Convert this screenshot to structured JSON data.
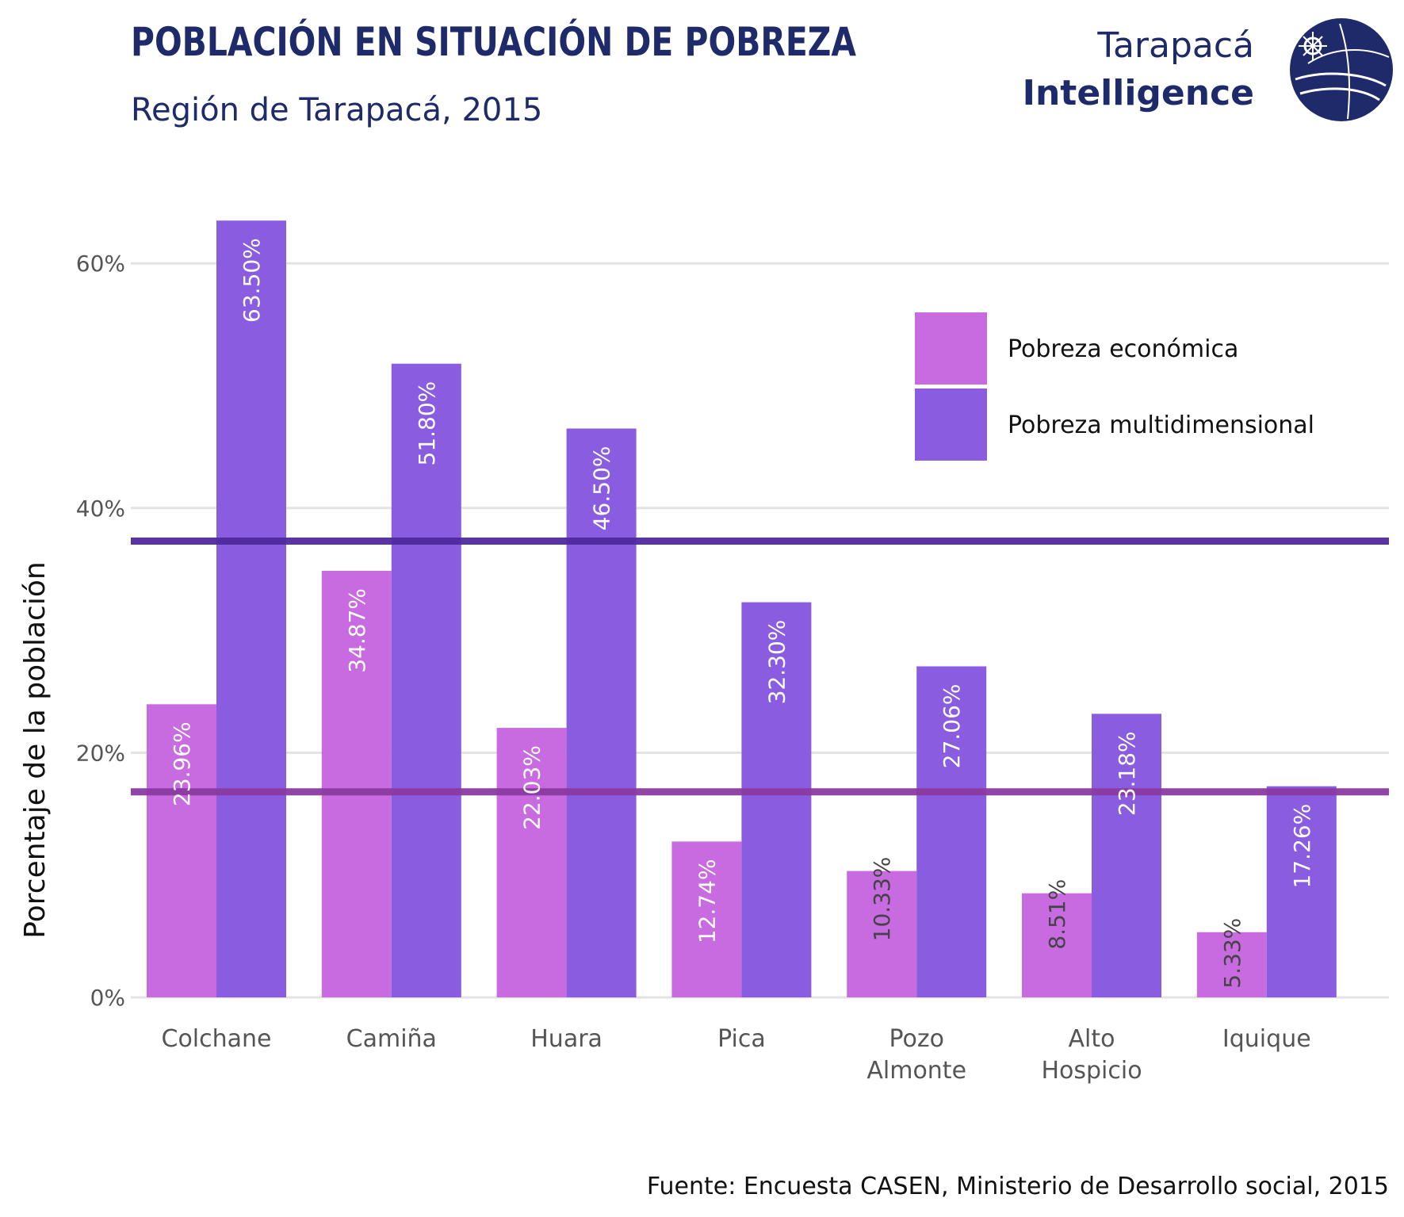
{
  "header": {
    "title": "POBLACIÓN EN SITUACIÓN DE POBREZA",
    "subtitle": "Región de Tarapacá, 2015"
  },
  "brand": {
    "line1": "Tarapacá",
    "line2": "Intelligence",
    "color": "#1f2a6b"
  },
  "source": "Fuente: Encuesta CASEN, Ministerio de Desarrollo social, 2015",
  "chart_data": {
    "type": "bar",
    "title": "POBLACIÓN EN SITUACIÓN DE POBREZA",
    "subtitle": "Región de Tarapacá, 2015",
    "xlabel": "",
    "ylabel": "Porcentaje de la población",
    "ylim": [
      0,
      66
    ],
    "yticks": [
      0,
      20,
      40,
      60
    ],
    "ytick_labels": [
      "0%",
      "20%",
      "40%",
      "60%"
    ],
    "grid": true,
    "legend_position": "top-right",
    "categories": [
      [
        "Colchane"
      ],
      [
        "Camiña"
      ],
      [
        "Huara"
      ],
      [
        "Pica"
      ],
      [
        "Pozo",
        "Almonte"
      ],
      [
        "Alto",
        "Hospicio"
      ],
      [
        "Iquique"
      ]
    ],
    "series": [
      {
        "name": "Pobreza económica",
        "color": "#c86ae0",
        "values": [
          23.96,
          34.87,
          22.03,
          12.74,
          10.33,
          8.51,
          5.33
        ],
        "labels": [
          "23.96%",
          "34.87%",
          "22.03%",
          "12.74%",
          "10.33%",
          "8.51%",
          "5.33%"
        ]
      },
      {
        "name": "Pobreza multidimensional",
        "color": "#8a5ce0",
        "values": [
          63.5,
          51.8,
          46.5,
          32.3,
          27.06,
          23.18,
          17.26
        ],
        "labels": [
          "63.50%",
          "51.80%",
          "46.50%",
          "32.30%",
          "27.06%",
          "23.18%",
          "17.26%"
        ]
      }
    ],
    "reference_lines": [
      {
        "value": 37.3,
        "color": "#4f2a9e"
      },
      {
        "value": 16.8,
        "color": "#8a3aa0"
      }
    ]
  }
}
